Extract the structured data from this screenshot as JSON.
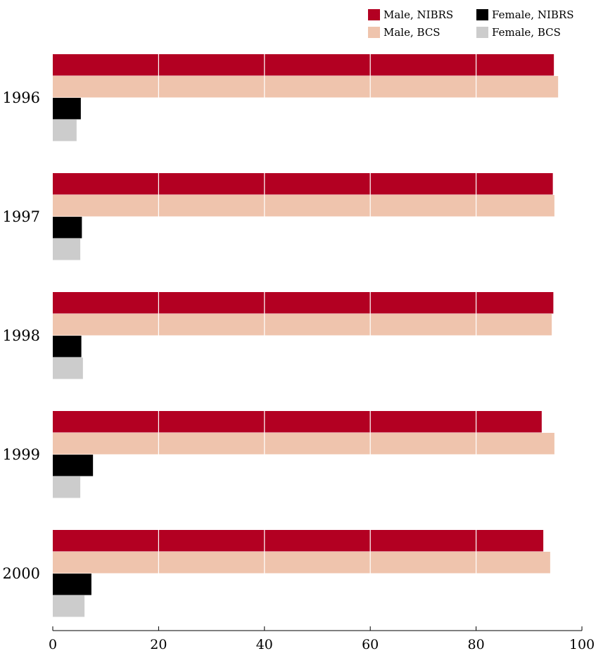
{
  "chart_data": {
    "type": "bar",
    "orientation": "horizontal",
    "title": "",
    "xlabel": "",
    "ylabel": "",
    "categories": [
      "1996",
      "1997",
      "1998",
      "1999",
      "2000"
    ],
    "xlim": [
      0,
      100
    ],
    "xticks": [
      "0",
      "20",
      "40",
      "60",
      "80",
      "100"
    ],
    "grid": "vertical lines at 20, 40, 60, 80 over bars",
    "legend_position": "top-right",
    "series": [
      {
        "name": "Male, NIBRS",
        "color": "#b30022",
        "values": [
          94.7,
          94.5,
          94.6,
          92.4,
          92.7
        ]
      },
      {
        "name": "Male, BCS",
        "color": "#efc4ad",
        "values": [
          95.5,
          94.8,
          94.3,
          94.8,
          94.0
        ]
      },
      {
        "name": "Female, NIBRS",
        "color": "#000000",
        "values": [
          5.3,
          5.5,
          5.4,
          7.6,
          7.3
        ]
      },
      {
        "name": "Female, BCS",
        "color": "#cccccc",
        "values": [
          4.5,
          5.2,
          5.7,
          5.2,
          6.0
        ]
      }
    ],
    "legend": {
      "rows": [
        [
          {
            "label": "Male, NIBRS",
            "color": "#b30022"
          },
          {
            "label": "Female, NIBRS",
            "color": "#000000"
          }
        ],
        [
          {
            "label": "Male, BCS",
            "color": "#efc4ad"
          },
          {
            "label": "Female, BCS",
            "color": "#cccccc"
          }
        ]
      ]
    }
  }
}
